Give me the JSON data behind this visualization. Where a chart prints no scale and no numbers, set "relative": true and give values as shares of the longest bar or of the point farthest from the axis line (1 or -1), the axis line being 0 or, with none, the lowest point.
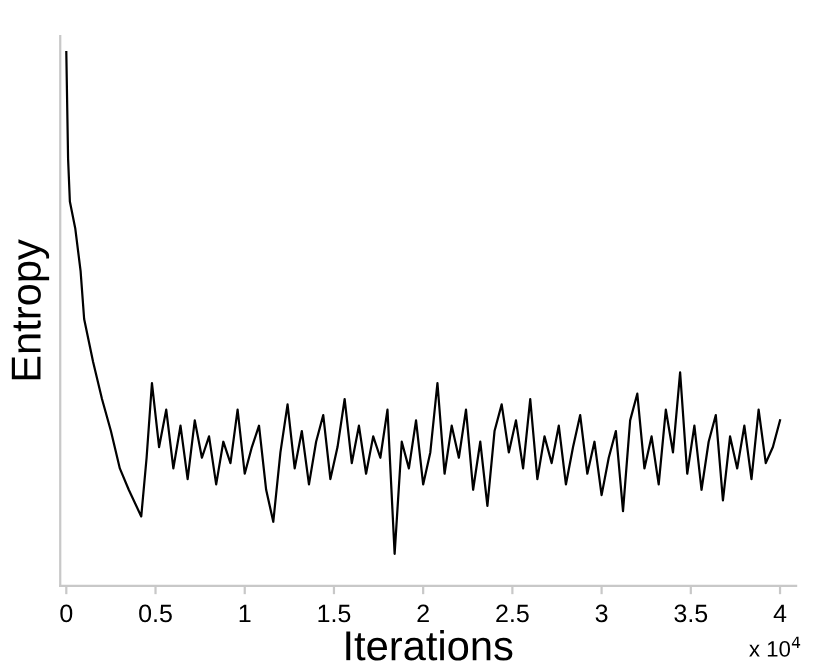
{
  "chart_data": {
    "type": "line",
    "xlabel": "Iterations",
    "ylabel": "Entropy",
    "relative": true,
    "annotations": [
      "x 10$^{4}$"
    ],
    "xlim": [
      -0.034,
      4.09
    ],
    "xticks": [
      0,
      0.5,
      1,
      1.5,
      2,
      2.5,
      3,
      3.5,
      4
    ],
    "grid": false,
    "legend": false,
    "marker": "none",
    "line_style": "solid",
    "series": [
      {
        "color": "#000000",
        "x": [
          0,
          0.01,
          0.02,
          0.05,
          0.08,
          0.1,
          0.15,
          0.2,
          0.25,
          0.3,
          0.35,
          0.42,
          0.45,
          0.48,
          0.52,
          0.56,
          0.6,
          0.64,
          0.68,
          0.72,
          0.76,
          0.8,
          0.84,
          0.88,
          0.92,
          0.96,
          1.0,
          1.04,
          1.08,
          1.12,
          1.16,
          1.2,
          1.24,
          1.28,
          1.32,
          1.36,
          1.4,
          1.44,
          1.48,
          1.52,
          1.56,
          1.6,
          1.64,
          1.68,
          1.72,
          1.76,
          1.8,
          1.84,
          1.88,
          1.92,
          1.96,
          2.0,
          2.04,
          2.08,
          2.12,
          2.16,
          2.2,
          2.24,
          2.28,
          2.32,
          2.36,
          2.4,
          2.44,
          2.48,
          2.52,
          2.56,
          2.6,
          2.64,
          2.68,
          2.72,
          2.76,
          2.8,
          2.84,
          2.88,
          2.92,
          2.96,
          3.0,
          3.04,
          3.08,
          3.12,
          3.16,
          3.2,
          3.24,
          3.28,
          3.32,
          3.36,
          3.4,
          3.44,
          3.48,
          3.52,
          3.56,
          3.6,
          3.64,
          3.68,
          3.72,
          3.76,
          3.8,
          3.84,
          3.88,
          3.92,
          3.96,
          4.0
        ],
        "values": [
          1.0,
          0.8,
          0.72,
          0.67,
          0.59,
          0.5,
          0.42,
          0.35,
          0.29,
          0.22,
          0.18,
          0.13,
          0.24,
          0.38,
          0.26,
          0.33,
          0.22,
          0.3,
          0.2,
          0.31,
          0.24,
          0.28,
          0.19,
          0.27,
          0.23,
          0.33,
          0.21,
          0.26,
          0.3,
          0.18,
          0.12,
          0.25,
          0.34,
          0.22,
          0.29,
          0.19,
          0.27,
          0.32,
          0.2,
          0.26,
          0.35,
          0.23,
          0.3,
          0.21,
          0.28,
          0.24,
          0.33,
          0.06,
          0.27,
          0.22,
          0.31,
          0.19,
          0.25,
          0.38,
          0.21,
          0.3,
          0.24,
          0.33,
          0.18,
          0.27,
          0.15,
          0.29,
          0.34,
          0.25,
          0.31,
          0.22,
          0.35,
          0.2,
          0.28,
          0.23,
          0.3,
          0.19,
          0.26,
          0.32,
          0.21,
          0.27,
          0.17,
          0.24,
          0.29,
          0.14,
          0.31,
          0.36,
          0.22,
          0.28,
          0.19,
          0.33,
          0.25,
          0.4,
          0.21,
          0.3,
          0.18,
          0.27,
          0.32,
          0.16,
          0.28,
          0.22,
          0.3,
          0.2,
          0.33,
          0.23,
          0.26,
          0.31
        ]
      }
    ]
  }
}
